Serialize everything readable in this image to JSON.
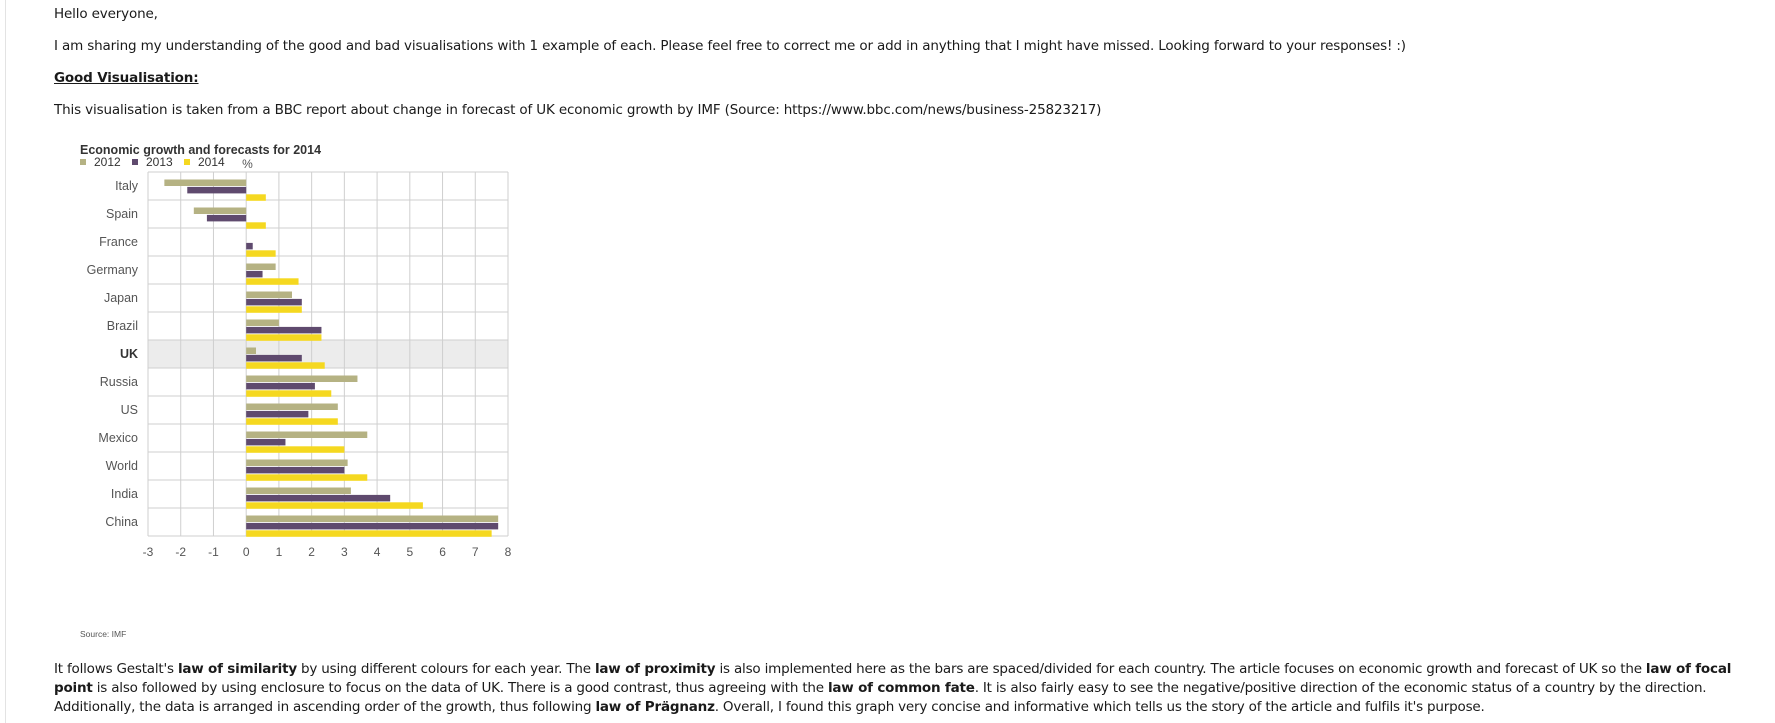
{
  "post": {
    "greeting": "Hello everyone,",
    "intro": "I am sharing my understanding of the good and bad visualisations with 1 example of each. Please feel free to correct me or add in anything that I might have missed. Looking forward to your responses! :)",
    "heading": "Good Visualisation:",
    "source_line": "This visualisation is taken from a BBC report about change in forecast of UK economic growth by IMF (Source: https://www.bbc.com/news/business-25823217)",
    "analysis": [
      {
        "text": "It follows Gestalt's ",
        "bold": false
      },
      {
        "text": "law of similarity",
        "bold": true
      },
      {
        "text": " by using different colours for each year. The ",
        "bold": false
      },
      {
        "text": "law of proximity",
        "bold": true
      },
      {
        "text": " is also implemented here as the bars are spaced/divided for each country. The article focuses on economic growth and forecast of UK so the ",
        "bold": false
      },
      {
        "text": "law of focal point",
        "bold": true
      },
      {
        "text": " is also followed by using enclosure to focus on the data of UK. There is a good contrast, thus agreeing with the ",
        "bold": false
      },
      {
        "text": "law of common fate",
        "bold": true
      },
      {
        "text": ". It is also fairly easy to see the negative/positive direction of the economic status of a country by the direction. Additionally, the data is arranged in ascending order of the growth, thus following ",
        "bold": false
      },
      {
        "text": "law of Prägnanz",
        "bold": true
      },
      {
        "text": ". Overall, I found this graph very concise and informative which tells us the story of the article and fulfils it's purpose.",
        "bold": false
      }
    ]
  },
  "chart_data": {
    "type": "bar",
    "orientation": "horizontal",
    "title": "Economic growth and forecasts for 2014",
    "xlabel": "%",
    "source": "Source: IMF",
    "highlight_category": "UK",
    "highlight_color": "#ececec",
    "categories": [
      "Italy",
      "Spain",
      "France",
      "Germany",
      "Japan",
      "Brazil",
      "UK",
      "Russia",
      "US",
      "Mexico",
      "World",
      "India",
      "China"
    ],
    "series": [
      {
        "name": "2012",
        "color": "#b5b283",
        "values": [
          -2.5,
          -1.6,
          0.0,
          0.9,
          1.4,
          1.0,
          0.3,
          3.4,
          2.8,
          3.7,
          3.1,
          3.2,
          7.7
        ]
      },
      {
        "name": "2013",
        "color": "#5f4a6e",
        "values": [
          -1.8,
          -1.2,
          0.2,
          0.5,
          1.7,
          2.3,
          1.7,
          2.1,
          1.9,
          1.2,
          3.0,
          4.4,
          7.7
        ]
      },
      {
        "name": "2014",
        "color": "#f5d820",
        "values": [
          0.6,
          0.6,
          0.9,
          1.6,
          1.7,
          2.3,
          2.4,
          2.6,
          2.8,
          3.0,
          3.7,
          5.4,
          7.5
        ]
      }
    ],
    "xlim": [
      -3,
      8
    ],
    "xticks": [
      -3,
      -2,
      -1,
      0,
      1,
      2,
      3,
      4,
      5,
      6,
      7,
      8
    ],
    "grid": true,
    "legend_position": "top-left"
  }
}
